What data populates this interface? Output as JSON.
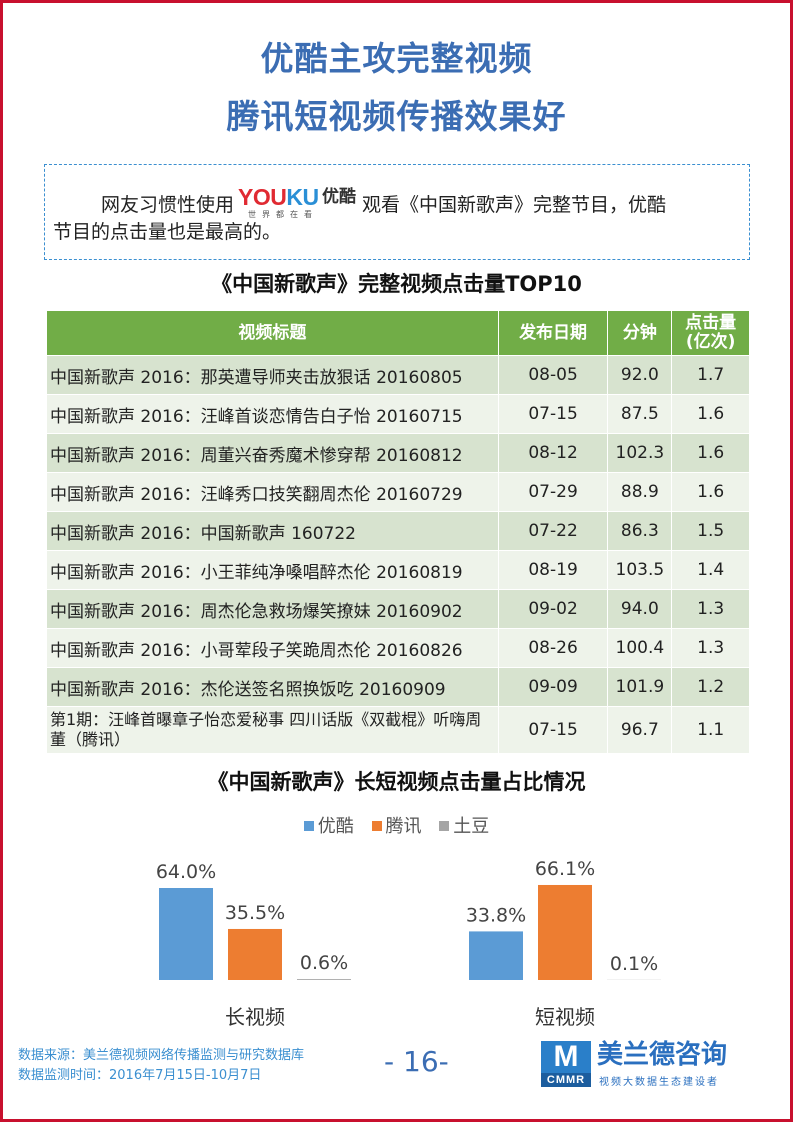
{
  "header": {
    "title_line1": "优酷主攻完整视频",
    "title_line2": "腾讯短视频传播效果好"
  },
  "intro": {
    "text_before_logo": "网友习惯性使用",
    "text_after_logo": "观看《中国新歌声》完整节目，优酷",
    "text_line2": "节目的点击量也是最高的。",
    "logo": {
      "brand_part1": "YOU",
      "brand_part2": "KU",
      "brand_cn": "优酷",
      "slogan": "世界都在看"
    }
  },
  "table": {
    "title": "《中国新歌声》完整视频点击量TOP10",
    "columns": [
      "视频标题",
      "发布日期",
      "分钟",
      "点击量\n(亿次)"
    ],
    "rows": [
      [
        "中国新歌声 2016：那英遭导师夹击放狠话 20160805",
        "08-05",
        "92.0",
        "1.7"
      ],
      [
        "中国新歌声 2016：汪峰首谈恋情告白子怡 20160715",
        "07-15",
        "87.5",
        "1.6"
      ],
      [
        "中国新歌声 2016：周董兴奋秀魔术惨穿帮 20160812",
        "08-12",
        "102.3",
        "1.6"
      ],
      [
        "中国新歌声 2016：汪峰秀口技笑翻周杰伦 20160729",
        "07-29",
        "88.9",
        "1.6"
      ],
      [
        "中国新歌声 2016：中国新歌声 160722",
        "07-22",
        "86.3",
        "1.5"
      ],
      [
        "中国新歌声 2016：小王菲纯净嗓唱醉杰伦 20160819",
        "08-19",
        "103.5",
        "1.4"
      ],
      [
        "中国新歌声 2016：周杰伦急救场爆笑撩妹 20160902",
        "09-02",
        "94.0",
        "1.3"
      ],
      [
        "中国新歌声 2016：小哥荤段子笑跪周杰伦 20160826",
        "08-26",
        "100.4",
        "1.3"
      ],
      [
        "中国新歌声 2016：杰伦送签名照换饭吃 20160909",
        "09-09",
        "101.9",
        "1.2"
      ],
      [
        "第1期：汪峰首曝章子怡恋爱秘事 四川话版《双截棍》听嗨周董（腾讯）",
        "07-15",
        "96.7",
        "1.1"
      ]
    ]
  },
  "chart_data": {
    "type": "bar",
    "title": "《中国新歌声》长短视频点击量占比情况",
    "categories": [
      "长视频",
      "短视频"
    ],
    "series": [
      {
        "name": "优酷",
        "color": "#5b9bd5",
        "values": [
          64.0,
          33.8
        ],
        "labels": [
          "64.0%",
          "33.8%"
        ]
      },
      {
        "name": "腾讯",
        "color": "#ed7d31",
        "values": [
          35.5,
          66.1
        ],
        "labels": [
          "35.5%",
          "66.1%"
        ]
      },
      {
        "name": "土豆",
        "color": "#a5a5a5",
        "values": [
          0.6,
          0.1
        ],
        "labels": [
          "0.6%",
          "0.1%"
        ]
      }
    ],
    "ylim": [
      0,
      70
    ],
    "grid": false,
    "legend_position": "top"
  },
  "footer": {
    "source_line1": "数据来源：美兰德视频网络传播监测与研究数据库",
    "source_line2": "数据监测时间：2016年7月15日-10月7日",
    "page_number": "- 16-",
    "logo_mark": "M",
    "logo_abbr": "CMMR",
    "logo_name": "美兰德咨询",
    "logo_tagline": "视频大数据生态建设者"
  }
}
